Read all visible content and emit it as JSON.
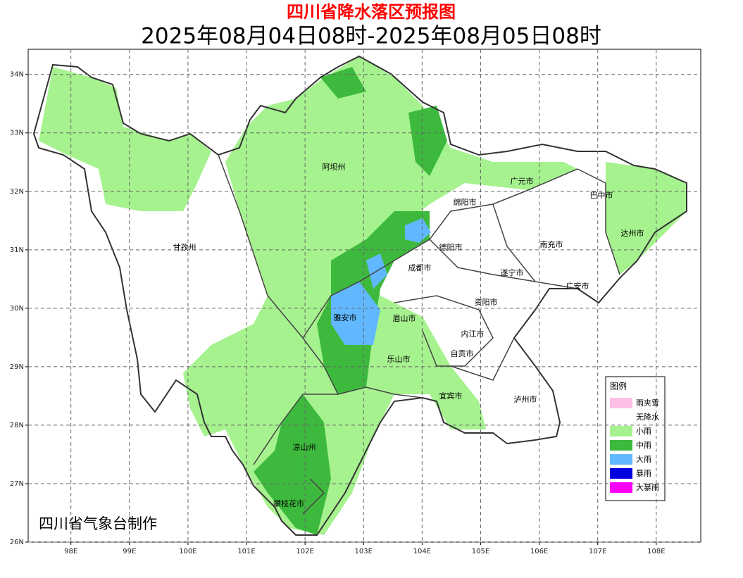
{
  "title": "四川省降水落区预报图",
  "subtitle": "2025年08月04日08时-2025年08月05日08时",
  "credit": "四川省气象台制作",
  "map": {
    "xlim": [
      97.27,
      108.76
    ],
    "ylim": [
      26,
      34.43
    ],
    "xticks": [
      {
        "value": 98,
        "label": "98E"
      },
      {
        "value": 99,
        "label": "99E"
      },
      {
        "value": 100,
        "label": "100E"
      },
      {
        "value": 101,
        "label": "101E"
      },
      {
        "value": 102,
        "label": "102E"
      },
      {
        "value": 103,
        "label": "103E"
      },
      {
        "value": 104,
        "label": "104E"
      },
      {
        "value": 105,
        "label": "105E"
      },
      {
        "value": 106,
        "label": "106E"
      },
      {
        "value": 107,
        "label": "107E"
      },
      {
        "value": 108,
        "label": "108E"
      }
    ],
    "yticks": [
      {
        "value": 26,
        "label": "26N"
      },
      {
        "value": 27,
        "label": "27N"
      },
      {
        "value": 28,
        "label": "28N"
      },
      {
        "value": 29,
        "label": "29N"
      },
      {
        "value": 30,
        "label": "30N"
      },
      {
        "value": 31,
        "label": "31N"
      },
      {
        "value": 32,
        "label": "32N"
      },
      {
        "value": 33,
        "label": "33N"
      },
      {
        "value": 34,
        "label": "34N"
      }
    ],
    "grid": true
  },
  "regions": [
    "阿坝州",
    "甘孜州",
    "广元市",
    "巴中市",
    "绵阳市",
    "达州市",
    "德阳市",
    "南充市",
    "成都市",
    "遂宁市",
    "广安市",
    "资阳市",
    "雅安市",
    "眉山市",
    "内江市",
    "自贡市",
    "乐山市",
    "宜宾市",
    "泸州市",
    "凉山州",
    "攀枝花市"
  ],
  "legend": {
    "title": "图例",
    "items": [
      {
        "name": "雨夹雪",
        "color": "#ffc0e8"
      },
      {
        "name": "无降水",
        "color": "#ffffff"
      },
      {
        "name": "小雨",
        "color": "#a6f28f"
      },
      {
        "name": "中雨",
        "color": "#3dba3d"
      },
      {
        "name": "大雨",
        "color": "#61b8ff"
      },
      {
        "name": "暴雨",
        "color": "#0000e1"
      },
      {
        "name": "大暴雨",
        "color": "#fa00fa"
      }
    ]
  }
}
